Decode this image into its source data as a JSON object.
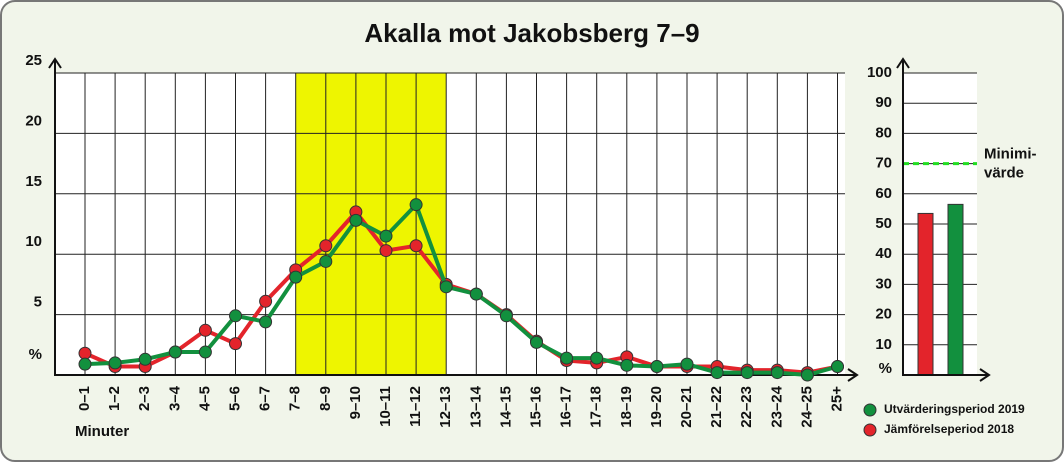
{
  "chart_data": [
    {
      "type": "line",
      "title": "Akalla mot Jakobsberg 7–9",
      "x_label": "Minuter",
      "categories": [
        "0–1",
        "1–2",
        "2–3",
        "3–4",
        "4–5",
        "5–6",
        "6–7",
        "7–8",
        "8–9",
        "9–10",
        "10–11",
        "11–12",
        "12–13",
        "13–14",
        "14–15",
        "15–16",
        "16–17",
        "17–18",
        "18–19",
        "19–20",
        "20–21",
        "21–22",
        "22–23",
        "23–24",
        "24–25",
        "25+"
      ],
      "highlight": [
        "7–8",
        "12–13"
      ],
      "highlight_color": "#eef500",
      "ylim": [
        0,
        25
      ],
      "yticks": [
        {
          "value": 0,
          "label": "%"
        },
        5,
        10,
        15,
        20,
        25
      ],
      "grid": true,
      "series": [
        {
          "name": "Utvärderingsperiod 2019",
          "color": "#12903e",
          "values": [
            0.9,
            1.0,
            1.3,
            1.9,
            1.9,
            4.9,
            4.4,
            8.1,
            9.4,
            12.8,
            11.5,
            14.1,
            7.3,
            6.7,
            4.9,
            2.7,
            1.4,
            1.4,
            0.8,
            0.7,
            0.9,
            0.2,
            0.2,
            0.2,
            0.0,
            0.7
          ]
        },
        {
          "name": "Jämförelseperiod 2018",
          "color": "#e3242b",
          "values": [
            1.8,
            0.7,
            0.7,
            1.9,
            3.7,
            2.6,
            6.1,
            8.7,
            10.7,
            13.5,
            10.3,
            10.7,
            7.5,
            6.7,
            5.0,
            2.8,
            1.2,
            1.0,
            1.5,
            0.7,
            0.7,
            0.7,
            0.4,
            0.4,
            0.2,
            0.7
          ]
        }
      ]
    },
    {
      "type": "bar",
      "values": [
        53.5,
        56.5
      ],
      "colors": [
        "#e3242b",
        "#12903e"
      ],
      "ylim": [
        0,
        100
      ],
      "yticks": [
        {
          "value": 0,
          "label": "%"
        },
        10,
        20,
        30,
        40,
        50,
        60,
        70,
        80,
        90,
        100
      ],
      "grid": true,
      "reference_line": {
        "value": 70,
        "label": [
          "Minimi-",
          "värde"
        ],
        "color": "#22dd22"
      }
    }
  ]
}
